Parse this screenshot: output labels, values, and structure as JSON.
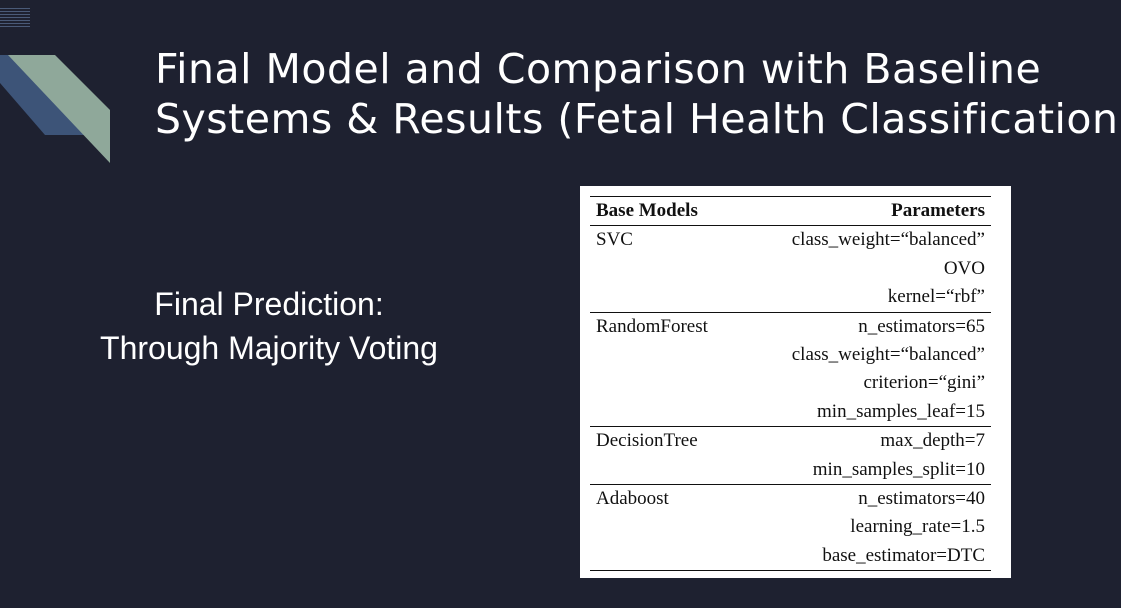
{
  "title_lines": [
    "Final Model and Comparison with Baseline",
    "Systems & Results (Fetal Health Classification)"
  ],
  "subtitle_lines": [
    "Final Prediction:",
    "Through Majority Voting"
  ],
  "colors": {
    "background": "#1e2130",
    "accent_blue": "#3d5478",
    "accent_green": "#8fa89a",
    "text": "#ffffff"
  },
  "table": {
    "headers": [
      "Base Models",
      "Parameters"
    ],
    "groups": [
      {
        "model": "SVC",
        "params": [
          "class_weight=“balanced”",
          "OVO",
          "kernel=“rbf”"
        ]
      },
      {
        "model": "RandomForest",
        "params": [
          "n_estimators=65",
          "class_weight=“balanced”",
          "criterion=“gini”",
          "min_samples_leaf=15"
        ]
      },
      {
        "model": "DecisionTree",
        "params": [
          "max_depth=7",
          "min_samples_split=10"
        ]
      },
      {
        "model": "Adaboost",
        "params": [
          "n_estimators=40",
          "learning_rate=1.5",
          "base_estimator=DTC"
        ]
      }
    ]
  }
}
